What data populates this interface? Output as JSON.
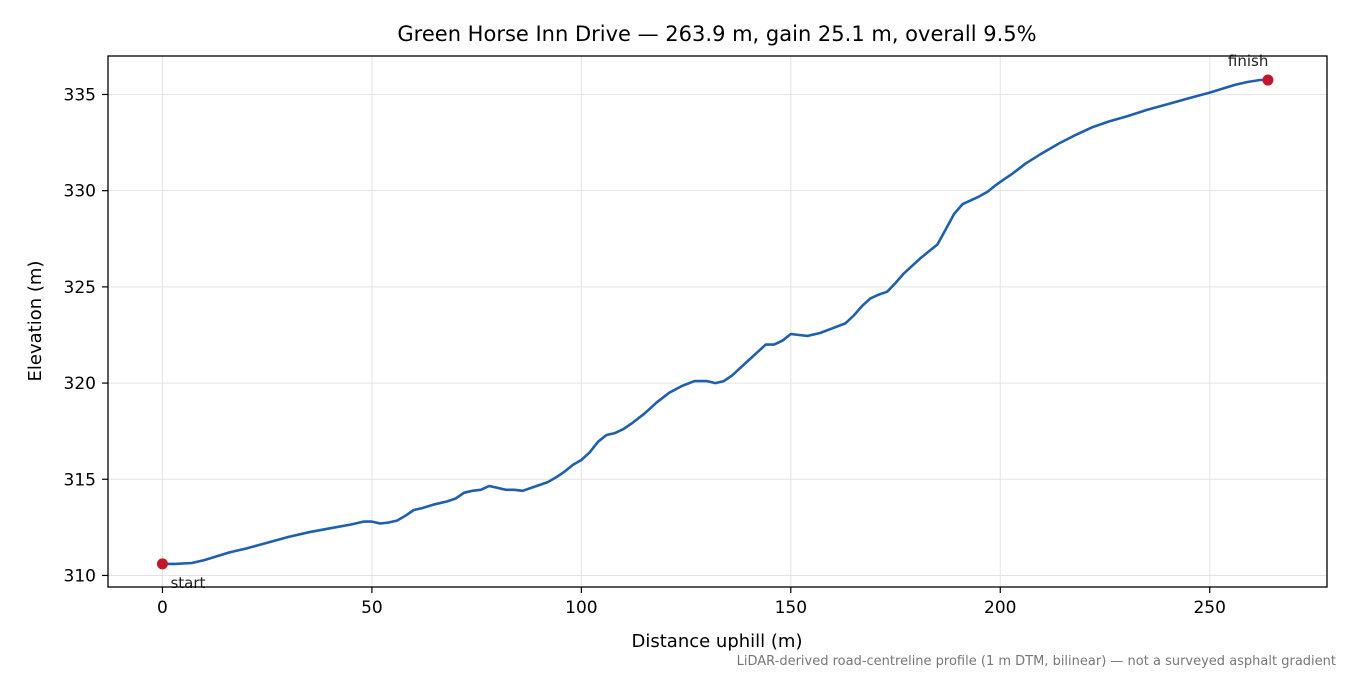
{
  "chart_data": {
    "type": "line",
    "title": "Green Horse Inn Drive — 263.9 m, gain 25.1 m, overall 9.5%",
    "xlabel": "Distance uphill (m)",
    "ylabel": "Elevation (m)",
    "xlim": [
      -13,
      278
    ],
    "ylim": [
      309.4,
      337.0
    ],
    "xticks": [
      0,
      50,
      100,
      150,
      200,
      250
    ],
    "yticks": [
      310,
      315,
      320,
      325,
      330,
      335
    ],
    "grid": true,
    "legend": "none",
    "footnote": "LiDAR-derived road-centreline profile (1 m DTM, bilinear) — not a surveyed asphalt gradient",
    "series": [
      {
        "color": "#1f5fad",
        "x": [
          0,
          3,
          7,
          10,
          13,
          16,
          20,
          25,
          30,
          35,
          40,
          45,
          48,
          50,
          52,
          54,
          56,
          58,
          60,
          62,
          65,
          68,
          70,
          72,
          74,
          76,
          78,
          80,
          82,
          84,
          86,
          88,
          90,
          92,
          94,
          96,
          98,
          100,
          102,
          104,
          106,
          108,
          110,
          112,
          115,
          118,
          121,
          124,
          127,
          130,
          132,
          134,
          136,
          138,
          140,
          142,
          144,
          146,
          148,
          150,
          152,
          154,
          157,
          160,
          163,
          165,
          167,
          169,
          171,
          173,
          175,
          177,
          179,
          181,
          183,
          185,
          187,
          189,
          191,
          193,
          195,
          197,
          199,
          201,
          203,
          206,
          210,
          214,
          218,
          222,
          226,
          230,
          235,
          240,
          245,
          250,
          253,
          256,
          259,
          262,
          263.9
        ],
        "y": [
          310.6,
          310.6,
          310.65,
          310.8,
          311.0,
          311.2,
          311.4,
          311.7,
          312.0,
          312.25,
          312.45,
          312.65,
          312.8,
          312.8,
          312.7,
          312.75,
          312.85,
          313.1,
          313.4,
          313.5,
          313.7,
          313.85,
          314.0,
          314.3,
          314.4,
          314.45,
          314.65,
          314.55,
          314.45,
          314.45,
          314.4,
          314.55,
          314.7,
          314.85,
          315.1,
          315.4,
          315.75,
          316.0,
          316.4,
          316.95,
          317.3,
          317.4,
          317.6,
          317.9,
          318.4,
          319.0,
          319.5,
          319.85,
          320.1,
          320.1,
          320.0,
          320.1,
          320.4,
          320.8,
          321.2,
          321.6,
          322.0,
          322.0,
          322.2,
          322.55,
          322.5,
          322.45,
          322.6,
          322.85,
          323.1,
          323.5,
          324.0,
          324.4,
          324.6,
          324.75,
          325.2,
          325.7,
          326.1,
          326.5,
          326.85,
          327.2,
          328.0,
          328.8,
          329.3,
          329.5,
          329.7,
          329.95,
          330.3,
          330.6,
          330.9,
          331.4,
          331.95,
          332.45,
          332.9,
          333.3,
          333.6,
          333.85,
          334.2,
          334.5,
          334.8,
          335.1,
          335.3,
          335.5,
          335.65,
          335.75,
          335.75
        ]
      }
    ],
    "markers": [
      {
        "label": "start",
        "x": 0,
        "y": 310.6,
        "color": "#c0182a"
      },
      {
        "label": "finish",
        "x": 263.9,
        "y": 335.75,
        "color": "#c0182a"
      }
    ]
  }
}
